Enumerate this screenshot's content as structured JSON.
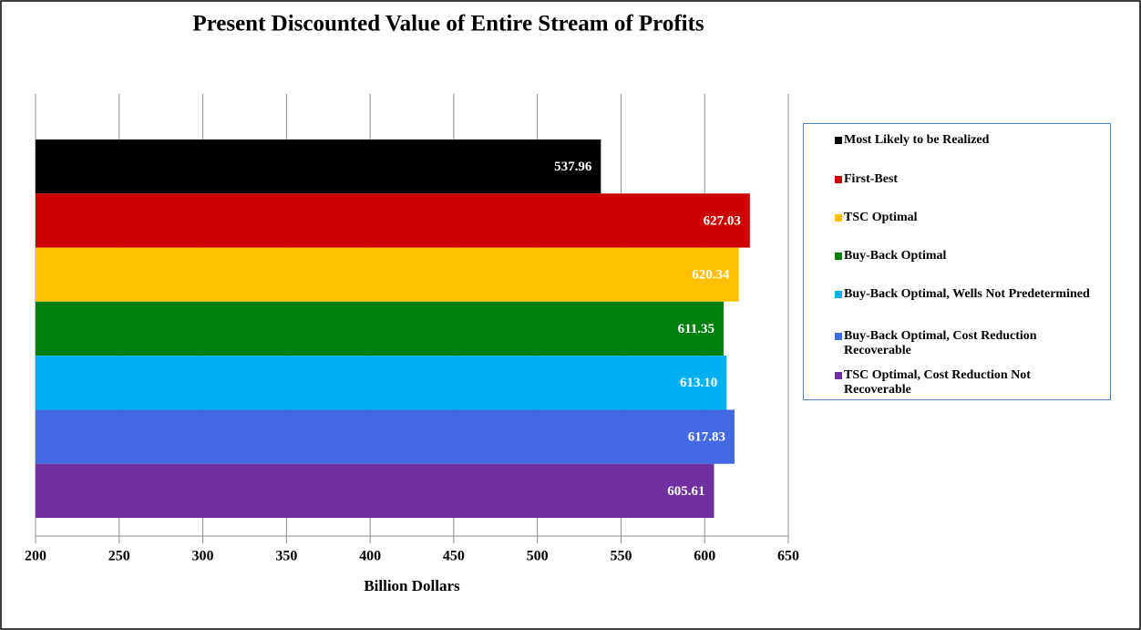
{
  "chart_data": {
    "type": "hbar",
    "title": "Present Discounted Value of Entire Stream of Profits",
    "x_label": "Billion Dollars",
    "series": [
      {
        "name": "Most Likely to be Realized",
        "color": "#000000",
        "values": [
          537.96
        ]
      },
      {
        "name": "First-Best",
        "color": "#cc0000",
        "values": [
          627.03
        ]
      },
      {
        "name": "TSC Optimal",
        "color": "#ffc000",
        "values": [
          620.34
        ]
      },
      {
        "name": "Buy-Back Optimal",
        "color": "#00800f",
        "values": [
          611.35
        ]
      },
      {
        "name": "Buy-Back Optimal, Wells Not Predetermined",
        "color": "#00b0f0",
        "values": [
          613.1
        ],
        "value_labels": [
          "613.10"
        ]
      },
      {
        "name": "Buy-Back Optimal, Cost Reduction Recoverable",
        "color": "#4169e1",
        "values": [
          617.83
        ]
      },
      {
        "name": "TSC Optimal, Cost Reduction Not Recoverable",
        "color": "#7030a0",
        "values": [
          605.61
        ]
      }
    ],
    "xlim": [
      200,
      650
    ],
    "xticks": [
      200,
      250,
      300,
      350,
      400,
      450,
      500,
      550,
      600,
      650
    ],
    "grid": true,
    "legend": "right"
  }
}
